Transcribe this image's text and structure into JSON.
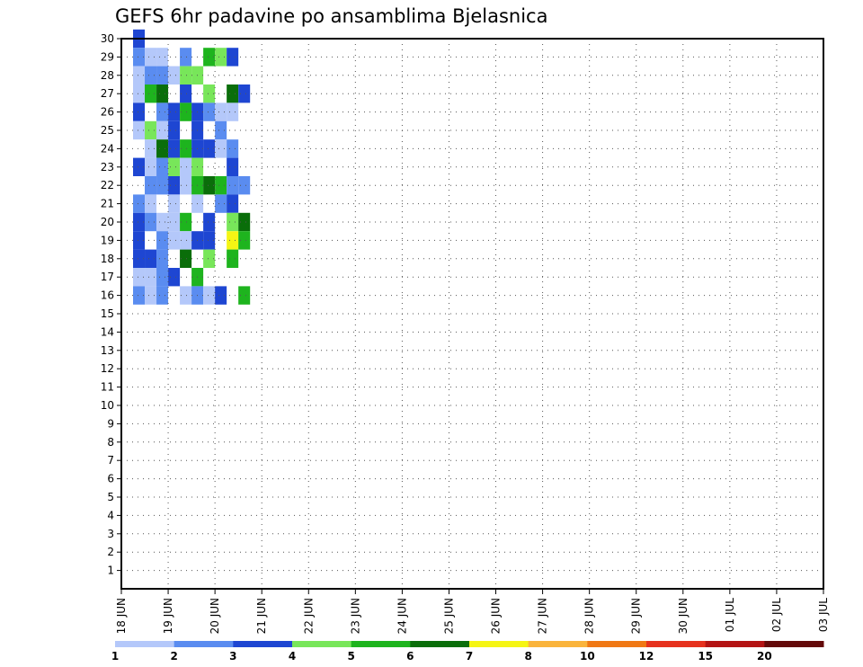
{
  "chart_data": {
    "type": "heatmap",
    "title": "GEFS 6hr padavine po ansamblima Bjelasnica",
    "xlabel": "",
    "ylabel": "",
    "x_tick_labels": [
      "18 JUN",
      "19 JUN",
      "20 JUN",
      "21 JUN",
      "22 JUN",
      "23 JUN",
      "24 JUN",
      "25 JUN",
      "26 JUN",
      "27 JUN",
      "28 JUN",
      "29 JUN",
      "30 JUN",
      "01 JUL",
      "02 JUL",
      "03 JUL"
    ],
    "y_tick_labels": [
      "1",
      "2",
      "3",
      "4",
      "5",
      "6",
      "7",
      "8",
      "9",
      "10",
      "11",
      "12",
      "13",
      "14",
      "15",
      "16",
      "17",
      "18",
      "19",
      "20",
      "21",
      "22",
      "23",
      "24",
      "25",
      "26",
      "27",
      "28",
      "29",
      "30"
    ],
    "ylim": [
      0,
      30
    ],
    "steps_per_day": 4,
    "grid": true,
    "legend": {
      "placement": "bottom",
      "labels": [
        "1",
        "2",
        "3",
        "4",
        "5",
        "6",
        "7",
        "8",
        "10",
        "12",
        "15",
        "20"
      ],
      "colors": [
        "#b4c8fa",
        "#5a8cf0",
        "#1e46d2",
        "#78e65a",
        "#1eb41e",
        "#0a6e0a",
        "#f5f514",
        "#fab43c",
        "#f07814",
        "#e6321e",
        "#b41414",
        "#640a0a"
      ]
    },
    "cells": [
      [
        0,
        30,
        3
      ],
      [
        0,
        29,
        2
      ],
      [
        1,
        29,
        1
      ],
      [
        2,
        29,
        1
      ],
      [
        4,
        29,
        2
      ],
      [
        6,
        29,
        5
      ],
      [
        7,
        29,
        4
      ],
      [
        8,
        29,
        3
      ],
      [
        0,
        28,
        1
      ],
      [
        1,
        28,
        2
      ],
      [
        2,
        28,
        2
      ],
      [
        3,
        28,
        1
      ],
      [
        4,
        28,
        4
      ],
      [
        5,
        28,
        4
      ],
      [
        0,
        27,
        1
      ],
      [
        1,
        27,
        5
      ],
      [
        2,
        27,
        6
      ],
      [
        4,
        27,
        3
      ],
      [
        6,
        27,
        4
      ],
      [
        8,
        27,
        6
      ],
      [
        9,
        27,
        3
      ],
      [
        0,
        26,
        3
      ],
      [
        2,
        26,
        2
      ],
      [
        3,
        26,
        3
      ],
      [
        4,
        26,
        5
      ],
      [
        5,
        26,
        3
      ],
      [
        6,
        26,
        2
      ],
      [
        7,
        26,
        1
      ],
      [
        8,
        26,
        1
      ],
      [
        0,
        25,
        1
      ],
      [
        1,
        25,
        4
      ],
      [
        2,
        25,
        1
      ],
      [
        3,
        25,
        3
      ],
      [
        5,
        25,
        3
      ],
      [
        7,
        25,
        2
      ],
      [
        1,
        24,
        1
      ],
      [
        2,
        24,
        6
      ],
      [
        3,
        24,
        3
      ],
      [
        4,
        24,
        5
      ],
      [
        5,
        24,
        3
      ],
      [
        6,
        24,
        3
      ],
      [
        7,
        24,
        1
      ],
      [
        8,
        24,
        2
      ],
      [
        0,
        23,
        3
      ],
      [
        1,
        23,
        1
      ],
      [
        2,
        23,
        2
      ],
      [
        3,
        23,
        4
      ],
      [
        4,
        23,
        1
      ],
      [
        5,
        23,
        4
      ],
      [
        8,
        23,
        3
      ],
      [
        1,
        22,
        2
      ],
      [
        2,
        22,
        2
      ],
      [
        3,
        22,
        3
      ],
      [
        4,
        22,
        1
      ],
      [
        5,
        22,
        5
      ],
      [
        6,
        22,
        6
      ],
      [
        7,
        22,
        5
      ],
      [
        8,
        22,
        2
      ],
      [
        9,
        22,
        2
      ],
      [
        0,
        21,
        2
      ],
      [
        1,
        21,
        1
      ],
      [
        3,
        21,
        1
      ],
      [
        5,
        21,
        1
      ],
      [
        7,
        21,
        2
      ],
      [
        8,
        21,
        3
      ],
      [
        0,
        20,
        3
      ],
      [
        1,
        20,
        2
      ],
      [
        2,
        20,
        1
      ],
      [
        3,
        20,
        1
      ],
      [
        4,
        20,
        5
      ],
      [
        6,
        20,
        3
      ],
      [
        8,
        20,
        4
      ],
      [
        9,
        20,
        6
      ],
      [
        0,
        19,
        3
      ],
      [
        2,
        19,
        2
      ],
      [
        3,
        19,
        1
      ],
      [
        4,
        19,
        1
      ],
      [
        5,
        19,
        3
      ],
      [
        6,
        19,
        3
      ],
      [
        8,
        19,
        7
      ],
      [
        9,
        19,
        5
      ],
      [
        0,
        18,
        3
      ],
      [
        1,
        18,
        3
      ],
      [
        2,
        18,
        2
      ],
      [
        4,
        18,
        6
      ],
      [
        6,
        18,
        4
      ],
      [
        8,
        18,
        5
      ],
      [
        0,
        17,
        1
      ],
      [
        1,
        17,
        1
      ],
      [
        2,
        17,
        2
      ],
      [
        3,
        17,
        3
      ],
      [
        5,
        17,
        5
      ],
      [
        0,
        16,
        2
      ],
      [
        1,
        16,
        1
      ],
      [
        2,
        16,
        2
      ],
      [
        4,
        16,
        1
      ],
      [
        5,
        16,
        2
      ],
      [
        6,
        16,
        1
      ],
      [
        7,
        16,
        3
      ],
      [
        9,
        16,
        5
      ]
    ]
  }
}
